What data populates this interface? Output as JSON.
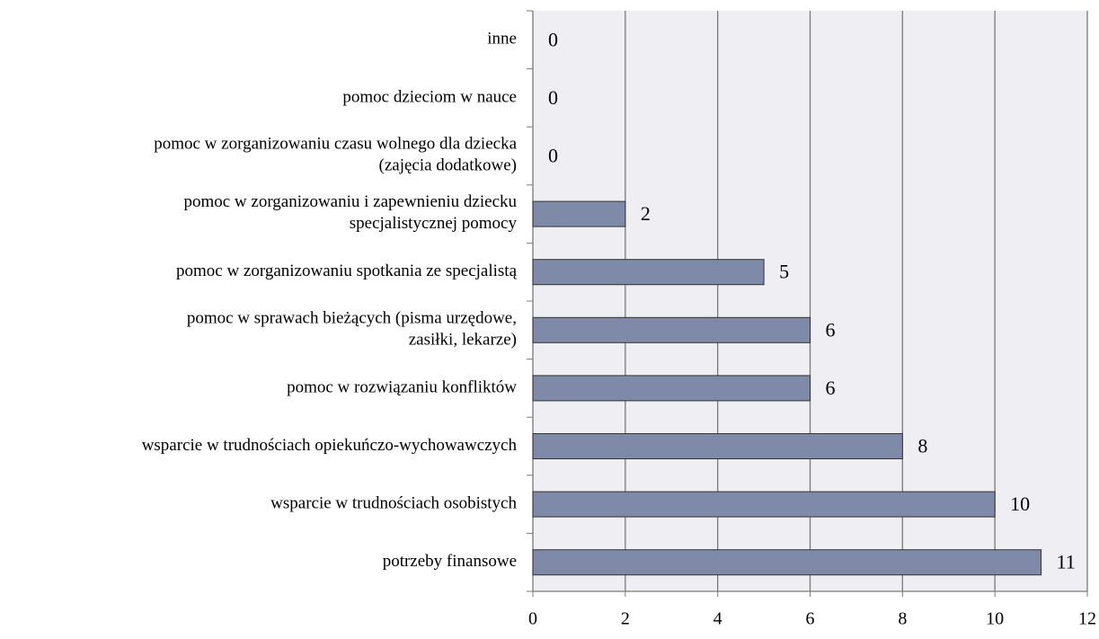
{
  "chart_data": {
    "type": "bar",
    "orientation": "horizontal",
    "categories": [
      "inne",
      "pomoc dzieciom w nauce",
      "pomoc w zorganizowaniu czasu wolnego dla dziecka (zajęcia dodatkowe)",
      "pomoc w zorganizowaniu i zapewnieniu dziecku specjalistycznej pomocy",
      "pomoc w zorganizowaniu spotkania ze specjalistą",
      "pomoc w sprawach bieżących (pisma urzędowe, zasiłki, lekarze)",
      "pomoc w rozwiązaniu konfliktów",
      "wsparcie w trudnościach opiekuńczo-wychowawczych",
      "wsparcie w trudnościach osobistych",
      "potrzeby finansowe"
    ],
    "values": [
      0,
      0,
      0,
      2,
      5,
      6,
      6,
      8,
      10,
      11
    ],
    "color": "#7f8aa8",
    "xlim": [
      0,
      12
    ],
    "xticks": [
      0,
      2,
      4,
      6,
      8,
      10,
      12
    ],
    "grid": true
  }
}
